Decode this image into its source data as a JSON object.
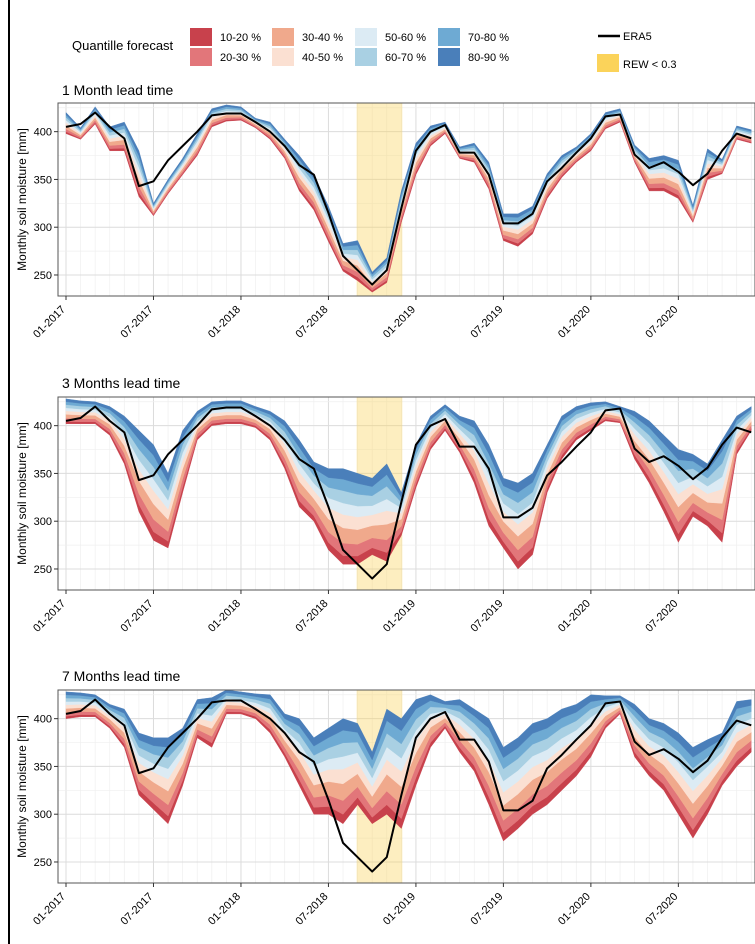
{
  "legend": {
    "quantile_title": "Quantille forecast",
    "quantile_items": [
      {
        "label": "10-20 %",
        "color": "#c8414c"
      },
      {
        "label": "20-30 %",
        "color": "#e2767a"
      },
      {
        "label": "30-40 %",
        "color": "#f0a98c"
      },
      {
        "label": "40-50 %",
        "color": "#fbe0d2"
      },
      {
        "label": "50-60 %",
        "color": "#dcebf4"
      },
      {
        "label": "60-70 %",
        "color": "#a9d0e3"
      },
      {
        "label": "70-80 %",
        "color": "#6eaad3"
      },
      {
        "label": "80-90 %",
        "color": "#4a7fba"
      }
    ],
    "era5_label": "ERA5",
    "era5_color": "#000000",
    "rew_label": "REW < 0.3",
    "rew_color": "#fbd35a"
  },
  "chart_data": [
    {
      "type": "area",
      "title": "1 Month lead time",
      "ylabel": "Monthly soil moisture [mm]",
      "xlabel": "",
      "ylim": [
        228,
        430
      ],
      "yticks": [
        250,
        300,
        350,
        400
      ],
      "x_start": "2017-01",
      "x_tick_labels": [
        "01-2017",
        "07-2017",
        "01-2018",
        "07-2018",
        "01-2019",
        "07-2019",
        "01-2020",
        "07-2020"
      ],
      "highlight_months": [
        20,
        23
      ],
      "era5": [
        405,
        408,
        420,
        405,
        393,
        343,
        348,
        370,
        385,
        400,
        417,
        419,
        419,
        410,
        400,
        385,
        365,
        355,
        315,
        270,
        255,
        240,
        255,
        320,
        380,
        400,
        407,
        378,
        378,
        355,
        304,
        304,
        314,
        348,
        362,
        378,
        393,
        416,
        418,
        376,
        362,
        368,
        358,
        344,
        356,
        380,
        398,
        393
      ],
      "low": [
        398,
        392,
        408,
        380,
        380,
        332,
        312,
        335,
        355,
        375,
        405,
        411,
        412,
        404,
        392,
        372,
        338,
        318,
        285,
        254,
        244,
        232,
        242,
        305,
        355,
        385,
        398,
        372,
        368,
        340,
        286,
        280,
        293,
        330,
        352,
        368,
        380,
        403,
        410,
        368,
        338,
        338,
        330,
        305,
        350,
        356,
        392,
        388
      ],
      "high": [
        420,
        404,
        426,
        405,
        410,
        380,
        325,
        350,
        372,
        398,
        424,
        428,
        426,
        414,
        410,
        392,
        375,
        355,
        322,
        283,
        286,
        253,
        268,
        338,
        388,
        406,
        410,
        384,
        388,
        368,
        314,
        314,
        322,
        356,
        375,
        384,
        398,
        420,
        424,
        386,
        372,
        375,
        370,
        323,
        382,
        371,
        406,
        402
      ]
    },
    {
      "type": "area",
      "title": "3 Months lead time",
      "ylabel": "Monthly soil moisture [mm]",
      "xlabel": "",
      "ylim": [
        228,
        430
      ],
      "yticks": [
        250,
        300,
        350,
        400
      ],
      "x_start": "2017-01",
      "x_tick_labels": [
        "01-2017",
        "07-2017",
        "01-2018",
        "07-2018",
        "01-2019",
        "07-2019",
        "01-2020",
        "07-2020"
      ],
      "highlight_months": [
        20,
        23
      ],
      "era5": [
        405,
        408,
        420,
        405,
        393,
        343,
        348,
        370,
        385,
        400,
        417,
        419,
        419,
        410,
        400,
        385,
        365,
        355,
        315,
        270,
        255,
        240,
        255,
        320,
        380,
        400,
        407,
        378,
        378,
        355,
        304,
        304,
        314,
        348,
        362,
        378,
        393,
        416,
        418,
        376,
        362,
        368,
        358,
        344,
        356,
        380,
        398,
        393
      ],
      "low": [
        402,
        402,
        402,
        390,
        360,
        310,
        280,
        272,
        330,
        385,
        400,
        402,
        402,
        398,
        385,
        355,
        315,
        300,
        270,
        255,
        255,
        265,
        258,
        285,
        335,
        375,
        395,
        372,
        340,
        295,
        272,
        250,
        265,
        330,
        365,
        385,
        395,
        405,
        403,
        365,
        340,
        310,
        278,
        305,
        295,
        278,
        370,
        395
      ],
      "high": [
        428,
        426,
        425,
        420,
        410,
        395,
        380,
        350,
        395,
        415,
        425,
        426,
        426,
        420,
        415,
        405,
        385,
        362,
        355,
        355,
        350,
        345,
        360,
        330,
        380,
        410,
        422,
        410,
        405,
        380,
        345,
        340,
        350,
        380,
        410,
        420,
        424,
        425,
        420,
        415,
        405,
        390,
        375,
        370,
        360,
        385,
        410,
        420
      ]
    },
    {
      "type": "area",
      "title": "7 Months lead time",
      "ylabel": "Monthly soil moisture [mm]",
      "xlabel": "",
      "ylim": [
        228,
        430
      ],
      "yticks": [
        250,
        300,
        350,
        400
      ],
      "x_start": "2017-01",
      "x_tick_labels": [
        "01-2017",
        "07-2017",
        "01-2018",
        "07-2018",
        "01-2019",
        "07-2019",
        "01-2020",
        "07-2020"
      ],
      "highlight_months": [
        20,
        23
      ],
      "era5": [
        405,
        408,
        420,
        405,
        393,
        343,
        348,
        370,
        385,
        400,
        417,
        419,
        419,
        410,
        400,
        385,
        365,
        355,
        315,
        270,
        255,
        240,
        255,
        320,
        380,
        400,
        407,
        378,
        378,
        355,
        304,
        304,
        314,
        348,
        362,
        378,
        393,
        416,
        418,
        376,
        362,
        368,
        358,
        344,
        356,
        380,
        398,
        393
      ],
      "low": [
        400,
        402,
        402,
        390,
        370,
        320,
        305,
        290,
        330,
        380,
        370,
        405,
        405,
        400,
        385,
        360,
        330,
        300,
        300,
        290,
        310,
        290,
        300,
        285,
        330,
        370,
        390,
        365,
        345,
        310,
        272,
        285,
        300,
        310,
        325,
        340,
        360,
        390,
        405,
        360,
        340,
        325,
        300,
        275,
        300,
        330,
        350,
        365
      ],
      "high": [
        428,
        427,
        425,
        415,
        410,
        385,
        380,
        380,
        390,
        420,
        422,
        430,
        428,
        426,
        425,
        405,
        400,
        380,
        390,
        400,
        395,
        365,
        410,
        400,
        420,
        425,
        418,
        420,
        410,
        400,
        370,
        380,
        395,
        400,
        410,
        415,
        425,
        424,
        424,
        415,
        400,
        395,
        385,
        370,
        378,
        385,
        418,
        420
      ]
    }
  ]
}
